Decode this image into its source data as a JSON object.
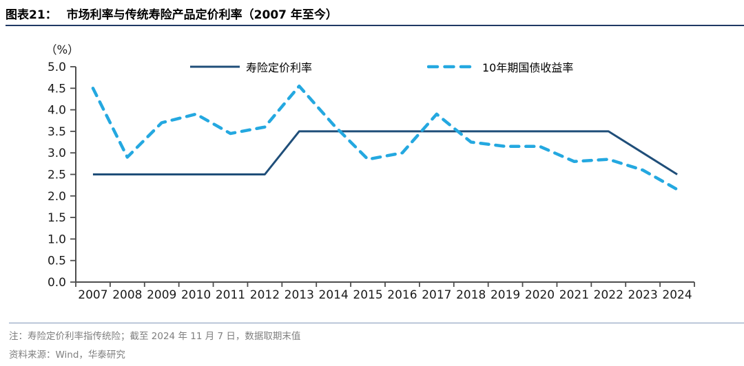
{
  "figure": {
    "label": "图表21：",
    "title": "市场利率与传统寿险产品定价利率（2007 年至今）",
    "title_rule_color": "#1F3864"
  },
  "chart_data": {
    "type": "line",
    "title": "市场利率与传统寿险产品定价利率（2007年至今）",
    "unit_label": "（%）",
    "categories": [
      "2007",
      "2008",
      "2009",
      "2010",
      "2011",
      "2012",
      "2013",
      "2014",
      "2015",
      "2016",
      "2017",
      "2018",
      "2019",
      "2020",
      "2021",
      "2022",
      "2023",
      "2024"
    ],
    "series": [
      {
        "name": "寿险定价利率",
        "style": "solid",
        "color": "#1F4E79",
        "values": [
          2.5,
          2.5,
          2.5,
          2.5,
          2.5,
          2.5,
          3.5,
          3.5,
          3.5,
          3.5,
          3.5,
          3.5,
          3.5,
          3.5,
          3.5,
          3.5,
          3.0,
          2.5
        ]
      },
      {
        "name": "10年期国债收益率",
        "style": "dashed",
        "color": "#24A8E0",
        "values": [
          4.5,
          2.9,
          3.7,
          3.9,
          3.45,
          3.6,
          4.55,
          3.65,
          2.85,
          3.0,
          3.9,
          3.25,
          3.15,
          3.15,
          2.8,
          2.85,
          2.6,
          2.15
        ]
      }
    ],
    "ylim": [
      0.0,
      5.0
    ],
    "ytick_step": 0.5,
    "legend_position": "top-inside",
    "grid": false,
    "axis_color": "#4d4d4d",
    "tick_label_color": "#1a1a1a"
  },
  "footer": {
    "note": "注：寿险定价利率指传统险；截至 2024 年 11 月 7 日，数据取期末值",
    "source": "资料来源：Wind，华泰研究",
    "divider_color": "#8096B8"
  }
}
